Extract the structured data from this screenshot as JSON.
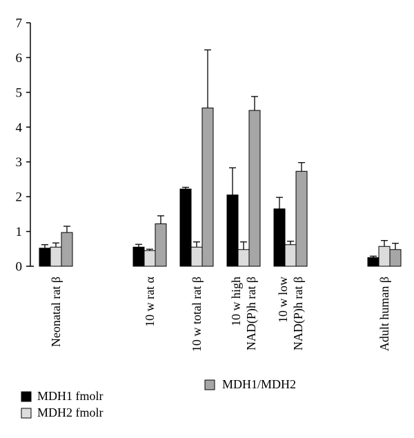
{
  "chart_data": {
    "type": "bar",
    "title": "",
    "xlabel": "",
    "ylabel": "",
    "ylim": [
      0,
      7
    ],
    "yticks": [
      0,
      1,
      2,
      3,
      4,
      5,
      6,
      7
    ],
    "categories": [
      [
        "Neonatal rat β"
      ],
      [
        "10 w rat α"
      ],
      [
        "10 w total rat β"
      ],
      [
        "10 w high",
        "NAD(P)h rat β"
      ],
      [
        "10 w low",
        "NAD(P)h rat β"
      ],
      [
        "Adult human β"
      ]
    ],
    "series": [
      {
        "name": "MDH1 fmolr",
        "color": "#000000",
        "values": [
          0.52,
          0.55,
          2.22,
          2.05,
          1.65,
          0.25
        ],
        "errors": [
          0.1,
          0.08,
          0.05,
          0.78,
          0.33,
          0.04
        ]
      },
      {
        "name": "MDH2 fmolr",
        "color": "#dcdcdc",
        "values": [
          0.55,
          0.45,
          0.55,
          0.48,
          0.62,
          0.57
        ],
        "errors": [
          0.12,
          0.04,
          0.15,
          0.22,
          0.1,
          0.17
        ]
      },
      {
        "name": "MDH1/MDH2",
        "color": "#a6a6a6",
        "values": [
          0.97,
          1.22,
          4.55,
          4.48,
          2.73,
          0.48
        ],
        "errors": [
          0.18,
          0.23,
          1.67,
          0.4,
          0.25,
          0.18
        ]
      }
    ],
    "legend": "bottom-left",
    "grid": false
  }
}
